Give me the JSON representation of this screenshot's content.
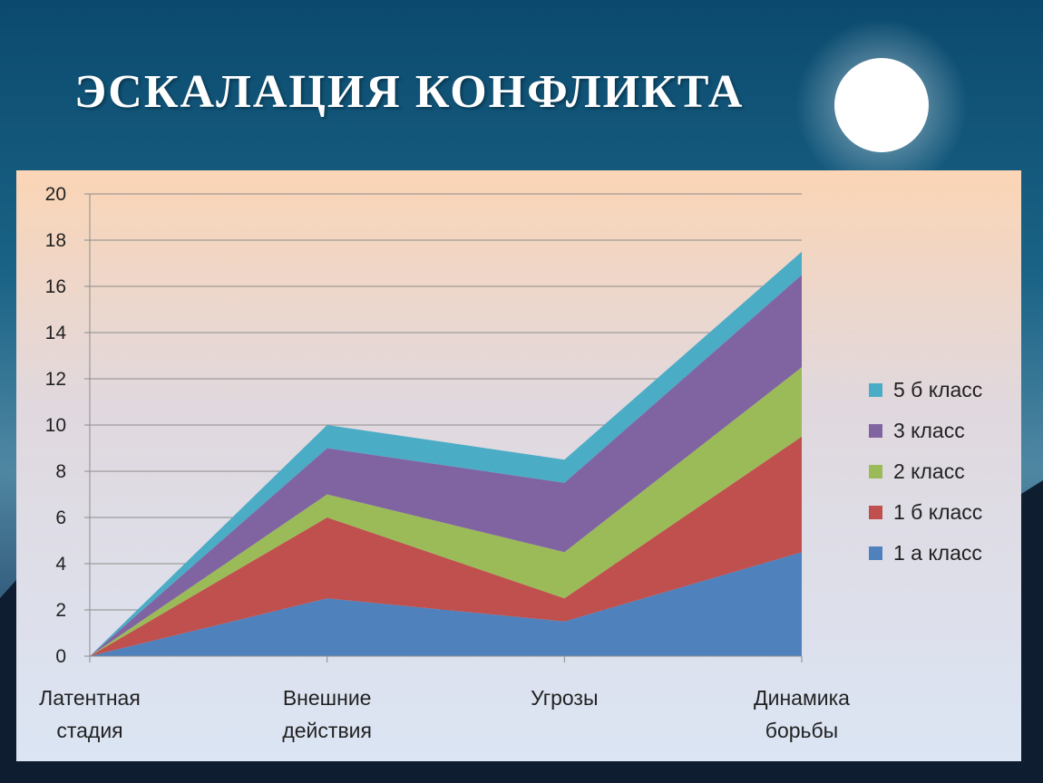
{
  "slide": {
    "title": "ЭСКАЛАЦИЯ  КОНФЛИКТА"
  },
  "colors": {
    "moon": "#ffffff",
    "title": "#ffffff"
  },
  "chart_data": {
    "type": "area",
    "stacked": true,
    "categories": [
      [
        "Латентная",
        "стадия"
      ],
      [
        "Внешние",
        "действия"
      ],
      [
        "Угрозы"
      ],
      [
        "Динамика",
        "борьбы"
      ]
    ],
    "series": [
      {
        "name": "1 а класс",
        "values": [
          0,
          2.5,
          1.5,
          4.5
        ],
        "color": "#4f81bd"
      },
      {
        "name": "1 б класс",
        "values": [
          0,
          3.5,
          1,
          5
        ],
        "color": "#c0504d"
      },
      {
        "name": "2 класс",
        "values": [
          0,
          1,
          2,
          3
        ],
        "color": "#9bbb59"
      },
      {
        "name": "3 класс",
        "values": [
          0,
          2,
          3,
          4
        ],
        "color": "#8064a2"
      },
      {
        "name": "5 б класс",
        "values": [
          0,
          1,
          1,
          1
        ],
        "color": "#4bacc6"
      }
    ],
    "ylim": [
      0,
      20
    ],
    "yticks": [
      0,
      2,
      4,
      6,
      8,
      10,
      12,
      14,
      16,
      18,
      20
    ],
    "grid": true,
    "legend_position": "right",
    "legend_order": "reversed"
  }
}
